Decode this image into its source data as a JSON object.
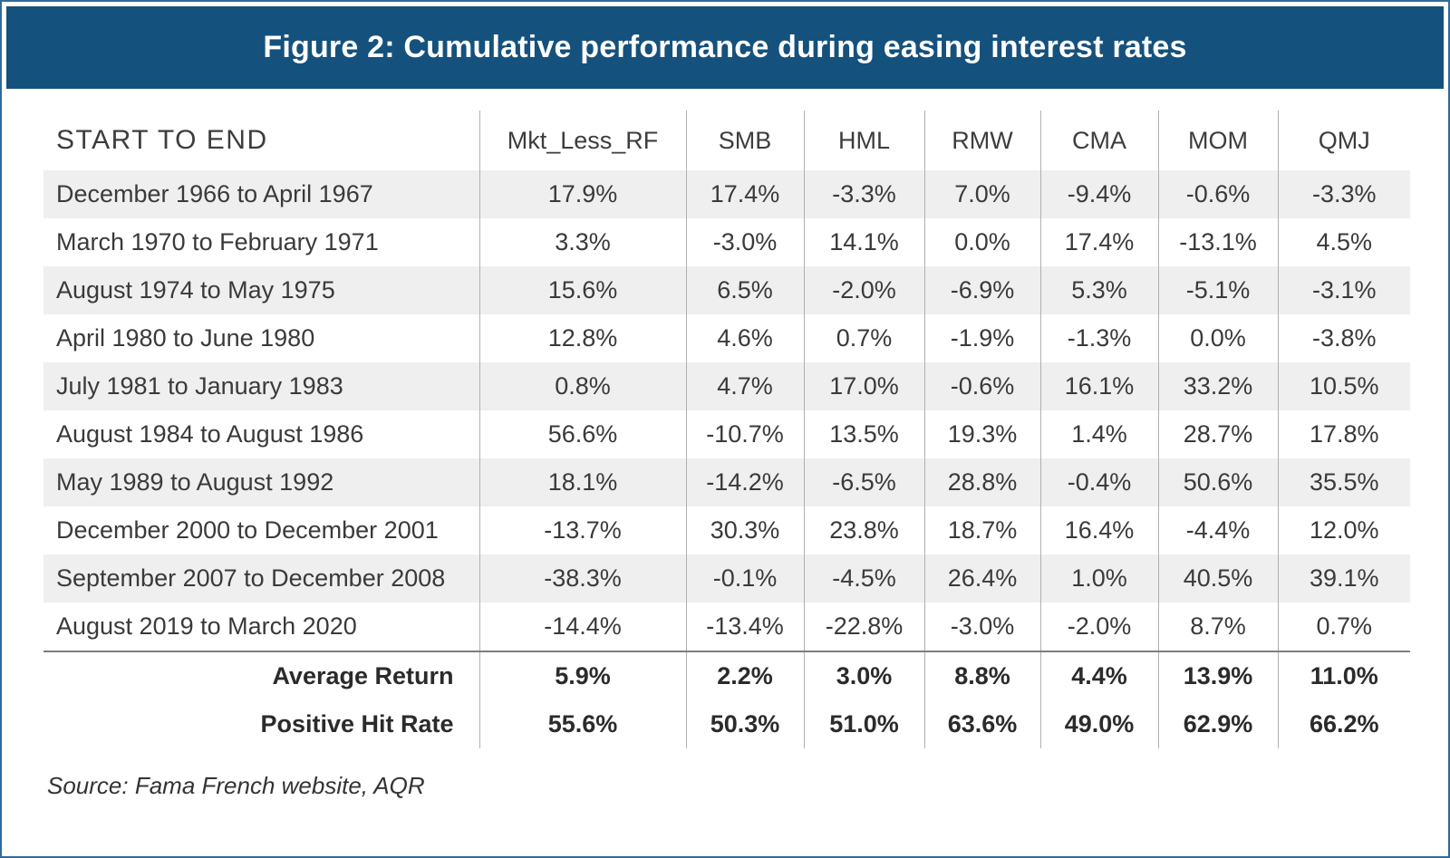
{
  "figure": {
    "title": "Figure 2: Cumulative performance during easing interest rates",
    "source": "Source: Fama French website, AQR"
  },
  "colors": {
    "title_bar_bg": "#15517d",
    "title_text": "#ffffff",
    "outer_border": "#2e6b9d",
    "alt_row_bg": "#efefef",
    "divider": "#b0b0b0",
    "body_text": "#3a3a3a"
  },
  "chart_data": {
    "type": "table",
    "title": "Figure 2: Cumulative performance during easing interest rates",
    "columns": [
      "START TO END",
      "Mkt_Less_RF",
      "SMB",
      "HML",
      "RMW",
      "CMA",
      "MOM",
      "QMJ"
    ],
    "rows": [
      {
        "label": "December 1966 to April 1967",
        "values": [
          "17.9%",
          "17.4%",
          "-3.3%",
          "7.0%",
          "-9.4%",
          "-0.6%",
          "-3.3%"
        ]
      },
      {
        "label": "March 1970 to February 1971",
        "values": [
          "3.3%",
          "-3.0%",
          "14.1%",
          "0.0%",
          "17.4%",
          "-13.1%",
          "4.5%"
        ]
      },
      {
        "label": "August 1974 to May 1975",
        "values": [
          "15.6%",
          "6.5%",
          "-2.0%",
          "-6.9%",
          "5.3%",
          "-5.1%",
          "-3.1%"
        ]
      },
      {
        "label": "April 1980 to June 1980",
        "values": [
          "12.8%",
          "4.6%",
          "0.7%",
          "-1.9%",
          "-1.3%",
          "0.0%",
          "-3.8%"
        ]
      },
      {
        "label": "July 1981 to January 1983",
        "values": [
          "0.8%",
          "4.7%",
          "17.0%",
          "-0.6%",
          "16.1%",
          "33.2%",
          "10.5%"
        ]
      },
      {
        "label": "August 1984 to August 1986",
        "values": [
          "56.6%",
          "-10.7%",
          "13.5%",
          "19.3%",
          "1.4%",
          "28.7%",
          "17.8%"
        ]
      },
      {
        "label": "May 1989 to August 1992",
        "values": [
          "18.1%",
          "-14.2%",
          "-6.5%",
          "28.8%",
          "-0.4%",
          "50.6%",
          "35.5%"
        ]
      },
      {
        "label": "December 2000 to December 2001",
        "values": [
          "-13.7%",
          "30.3%",
          "23.8%",
          "18.7%",
          "16.4%",
          "-4.4%",
          "12.0%"
        ]
      },
      {
        "label": "September 2007 to December 2008",
        "values": [
          "-38.3%",
          "-0.1%",
          "-4.5%",
          "26.4%",
          "1.0%",
          "40.5%",
          "39.1%"
        ]
      },
      {
        "label": "August 2019 to March 2020",
        "values": [
          "-14.4%",
          "-13.4%",
          "-22.8%",
          "-3.0%",
          "-2.0%",
          "8.7%",
          "0.7%"
        ]
      }
    ],
    "summary_rows": [
      {
        "label": "Average Return",
        "values": [
          "5.9%",
          "2.2%",
          "3.0%",
          "8.8%",
          "4.4%",
          "13.9%",
          "11.0%"
        ]
      },
      {
        "label": "Positive Hit Rate",
        "values": [
          "55.6%",
          "50.3%",
          "51.0%",
          "63.6%",
          "49.0%",
          "62.9%",
          "66.2%"
        ]
      }
    ],
    "layout": {
      "alternating_shading_starts_on_first_data_row": true,
      "column_dividers": true,
      "rule_above_summary_rows": true
    }
  }
}
